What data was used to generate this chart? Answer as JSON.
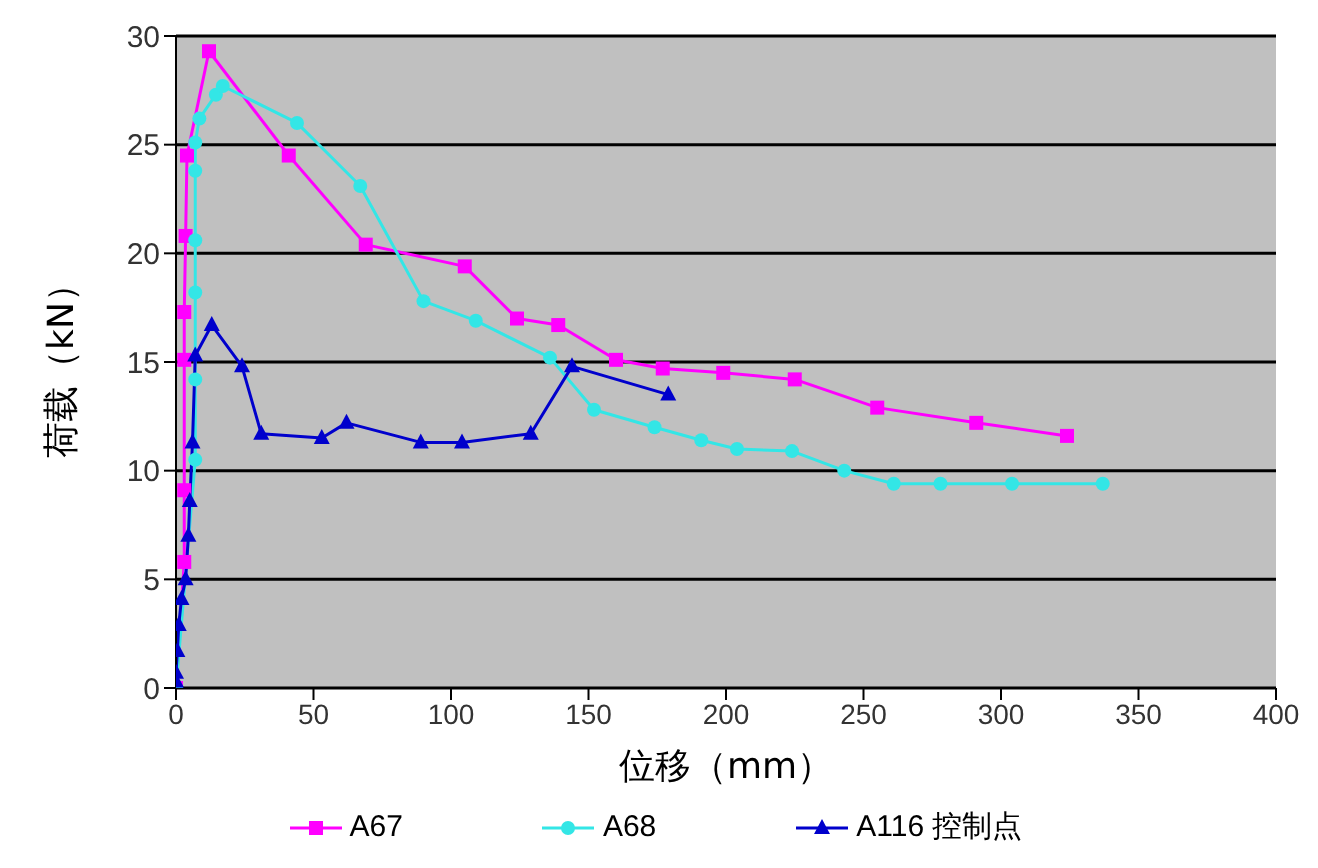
{
  "chart_data": {
    "type": "line",
    "xlabel": "位移（mm）",
    "ylabel": "荷载（kN）",
    "xlim": [
      0,
      400
    ],
    "xticks": [
      0,
      50,
      100,
      150,
      200,
      250,
      300,
      350,
      400
    ],
    "ylim": [
      0,
      30
    ],
    "yticks": [
      0,
      5,
      10,
      15,
      20,
      25,
      30
    ],
    "grid": "y",
    "legend": "bottom",
    "series": [
      {
        "name": "A67",
        "color": "#ff00ff",
        "marker": "square",
        "x": [
          0,
          3,
          3,
          3,
          3,
          3.5,
          4,
          12,
          41,
          69,
          105,
          124,
          139,
          160,
          177,
          199,
          225,
          255,
          291,
          324
        ],
        "values": [
          0,
          5.8,
          9.1,
          15.1,
          17.3,
          20.8,
          24.5,
          29.3,
          24.5,
          20.4,
          19.4,
          17,
          16.7,
          15.1,
          14.7,
          14.5,
          14.2,
          12.9,
          12.2,
          11.6
        ]
      },
      {
        "name": "A68",
        "color": "#33e6e6",
        "marker": "circle",
        "x": [
          0,
          7,
          7,
          7,
          7,
          7,
          7,
          8.5,
          14.5,
          17,
          44,
          67,
          90,
          109,
          136,
          152,
          174,
          191,
          204,
          224,
          243,
          261,
          278,
          304,
          337
        ],
        "values": [
          0,
          10.5,
          14.2,
          18.2,
          20.6,
          23.8,
          25.1,
          26.2,
          27.3,
          27.7,
          26,
          23.1,
          17.8,
          16.9,
          15.2,
          12.8,
          12,
          11.4,
          11,
          10.9,
          10,
          9.4,
          9.4,
          9.4,
          9.4
        ]
      },
      {
        "name": "A116 控制点",
        "color": "#0000cc",
        "marker": "triangle",
        "x": [
          0,
          0,
          0.5,
          1,
          2,
          3.5,
          4.5,
          5,
          6,
          7,
          13,
          24,
          31,
          53,
          62,
          89,
          104,
          129,
          144,
          179
        ],
        "values": [
          0.3,
          0.7,
          1.7,
          2.9,
          4.1,
          5,
          7,
          8.6,
          11.3,
          15.3,
          16.7,
          14.8,
          11.7,
          11.5,
          12.2,
          11.3,
          11.3,
          11.7,
          14.8,
          13.5
        ]
      }
    ]
  }
}
